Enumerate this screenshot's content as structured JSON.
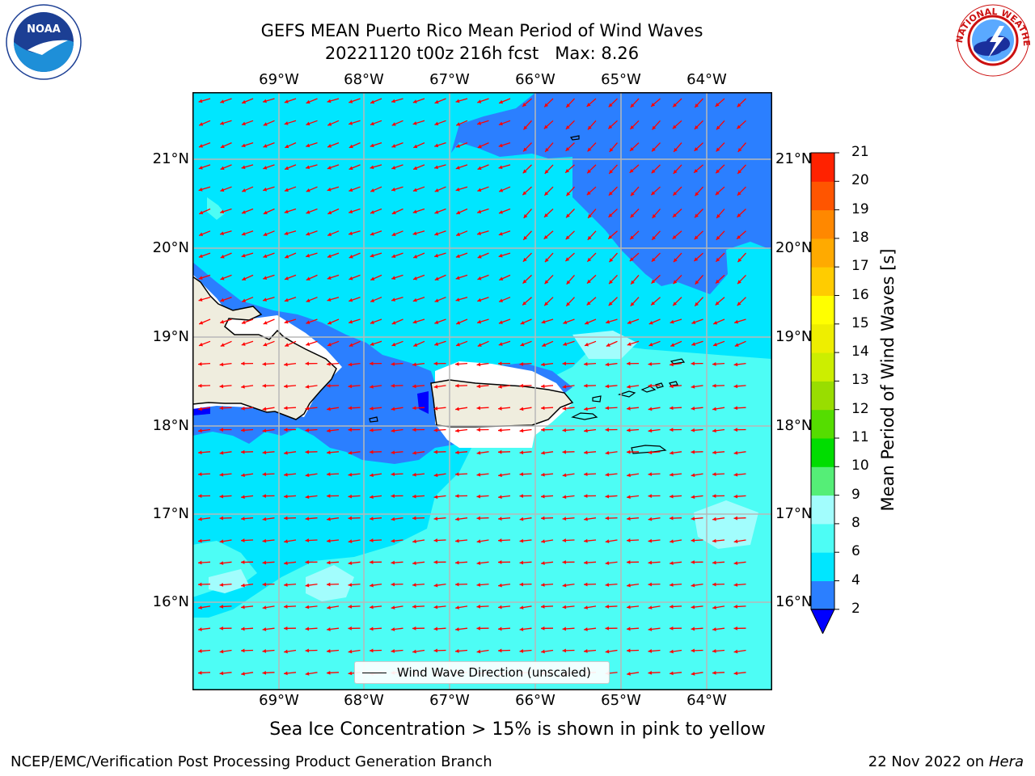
{
  "title": {
    "line1": "GEFS MEAN Puerto Rico Mean Period of Wind Waves",
    "line2": "20221120 t00z 216h fcst   Max: 8.26"
  },
  "map": {
    "lon_labels": [
      "69°W",
      "68°W",
      "67°W",
      "66°W",
      "65°W",
      "64°W"
    ],
    "lat_labels": [
      "21°N",
      "20°N",
      "19°N",
      "18°N",
      "17°N",
      "16°N"
    ],
    "legend_label": "Wind Wave Direction (unscaled)",
    "sea_ice_note": "Sea Ice Concentration > 15% is shown in pink to yellow",
    "arrow_color": "#ff0000",
    "land_color": "#efedde"
  },
  "colorbar": {
    "label": "Mean Period of Wind Waves [s]",
    "levels": [
      "2",
      "4",
      "6",
      "8",
      "9",
      "10",
      "11",
      "12",
      "13",
      "14",
      "15",
      "16",
      "17",
      "18",
      "19",
      "20",
      "21"
    ],
    "colors": [
      "#2b7fff",
      "#00e6ff",
      "#4dfdf5",
      "#a2fdfd",
      "#55ee77",
      "#00dd00",
      "#55dd00",
      "#99dd00",
      "#ccee00",
      "#eeee00",
      "#ffff00",
      "#ffcc00",
      "#ffaa00",
      "#ff8800",
      "#ff5500",
      "#ff2200"
    ],
    "under_color": "#0000ff"
  },
  "footer": {
    "left": "NCEP/EMC/Verification Post Processing Product Generation Branch",
    "date": "22 Nov 2022 on",
    "machine": "Hera"
  },
  "logos": {
    "noaa_text": "NOAA",
    "nws_text": "NATIONAL WEATHER SERVICE"
  }
}
